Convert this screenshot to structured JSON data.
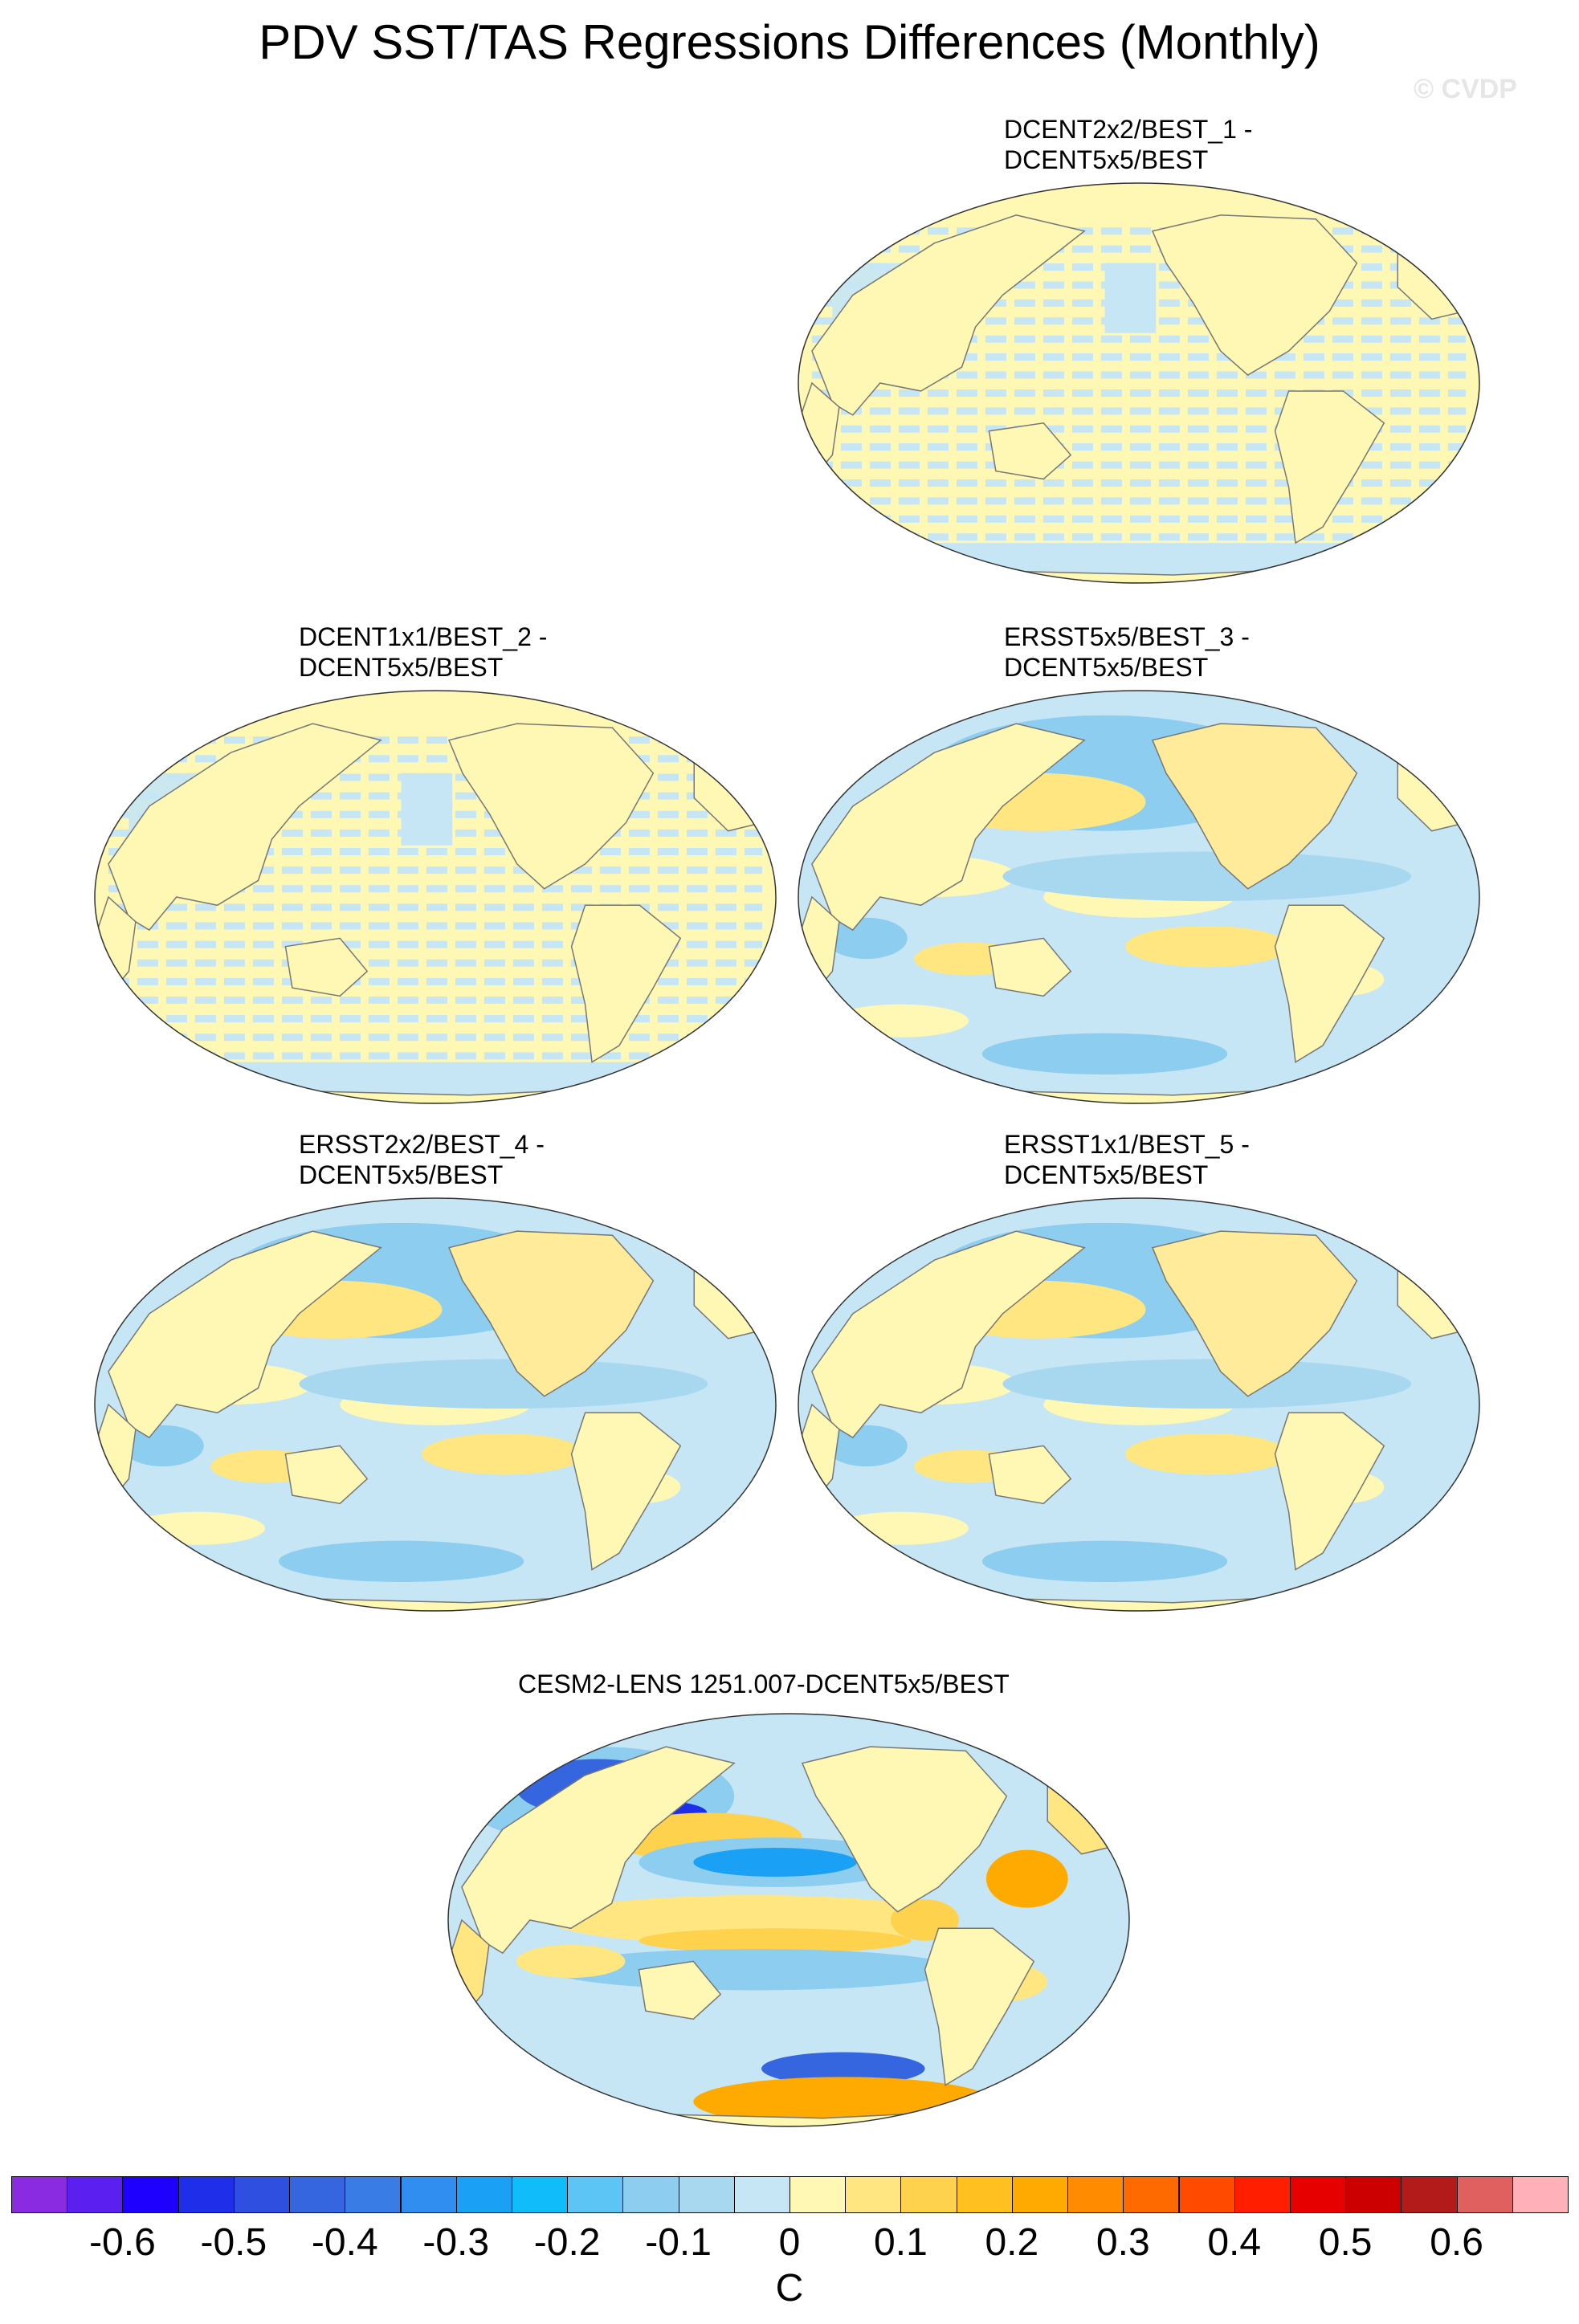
{
  "header": {
    "title": "PDV SST/TAS Regressions Differences (Monthly)",
    "watermark": "© CVDP"
  },
  "panels": [
    {
      "title": "DCENT2x2/BEST_1 -\nDCENT5x5/BEST",
      "style": "hatched"
    },
    {
      "title": "DCENT1x1/BEST_2 -\nDCENT5x5/BEST",
      "style": "hatched"
    },
    {
      "title": "ERSST5x5/BEST_3 -\nDCENT5x5/BEST",
      "style": "smooth"
    },
    {
      "title": "ERSST2x2/BEST_4 -\nDCENT5x5/BEST",
      "style": "smooth"
    },
    {
      "title": "ERSST1x1/BEST_5 -\nDCENT5x5/BEST",
      "style": "smooth"
    },
    {
      "title": "CESM2-LENS 1251.007-DCENT5x5/BEST",
      "style": "model"
    }
  ],
  "chart_data": {
    "type": "map",
    "description_levels": [
      -0.7,
      -0.65,
      -0.6,
      -0.55,
      -0.5,
      -0.45,
      -0.4,
      -0.35,
      -0.3,
      -0.25,
      -0.2,
      -0.15,
      -0.1,
      -0.05,
      0,
      0.05,
      0.1,
      0.15,
      0.2,
      0.25,
      0.3,
      0.35,
      0.4,
      0.45,
      0.5,
      0.55,
      0.6,
      0.65,
      0.7
    ],
    "colorbar": {
      "colors": [
        "#8a2be2",
        "#5b1ff0",
        "#1e00ff",
        "#1f2ee8",
        "#2e4fe0",
        "#3566e0",
        "#3a7ce6",
        "#2f8ef0",
        "#1aa0f5",
        "#10bcfa",
        "#5cc5f5",
        "#8ccdf0",
        "#a8d8f0",
        "#c6e6f5",
        "#fff8b4",
        "#ffe680",
        "#ffd24d",
        "#ffc020",
        "#ffaa00",
        "#ff8c00",
        "#ff6a00",
        "#ff4a00",
        "#ff1e00",
        "#e60000",
        "#cc0000",
        "#b31a1a",
        "#e06060",
        "#ffb0b8"
      ],
      "tick_labels": [
        "-0.6",
        "-0.5",
        "-0.4",
        "-0.3",
        "-0.2",
        "-0.1",
        "0",
        "0.1",
        "0.2",
        "0.3",
        "0.4",
        "0.5",
        "0.6"
      ],
      "units": "C"
    }
  }
}
